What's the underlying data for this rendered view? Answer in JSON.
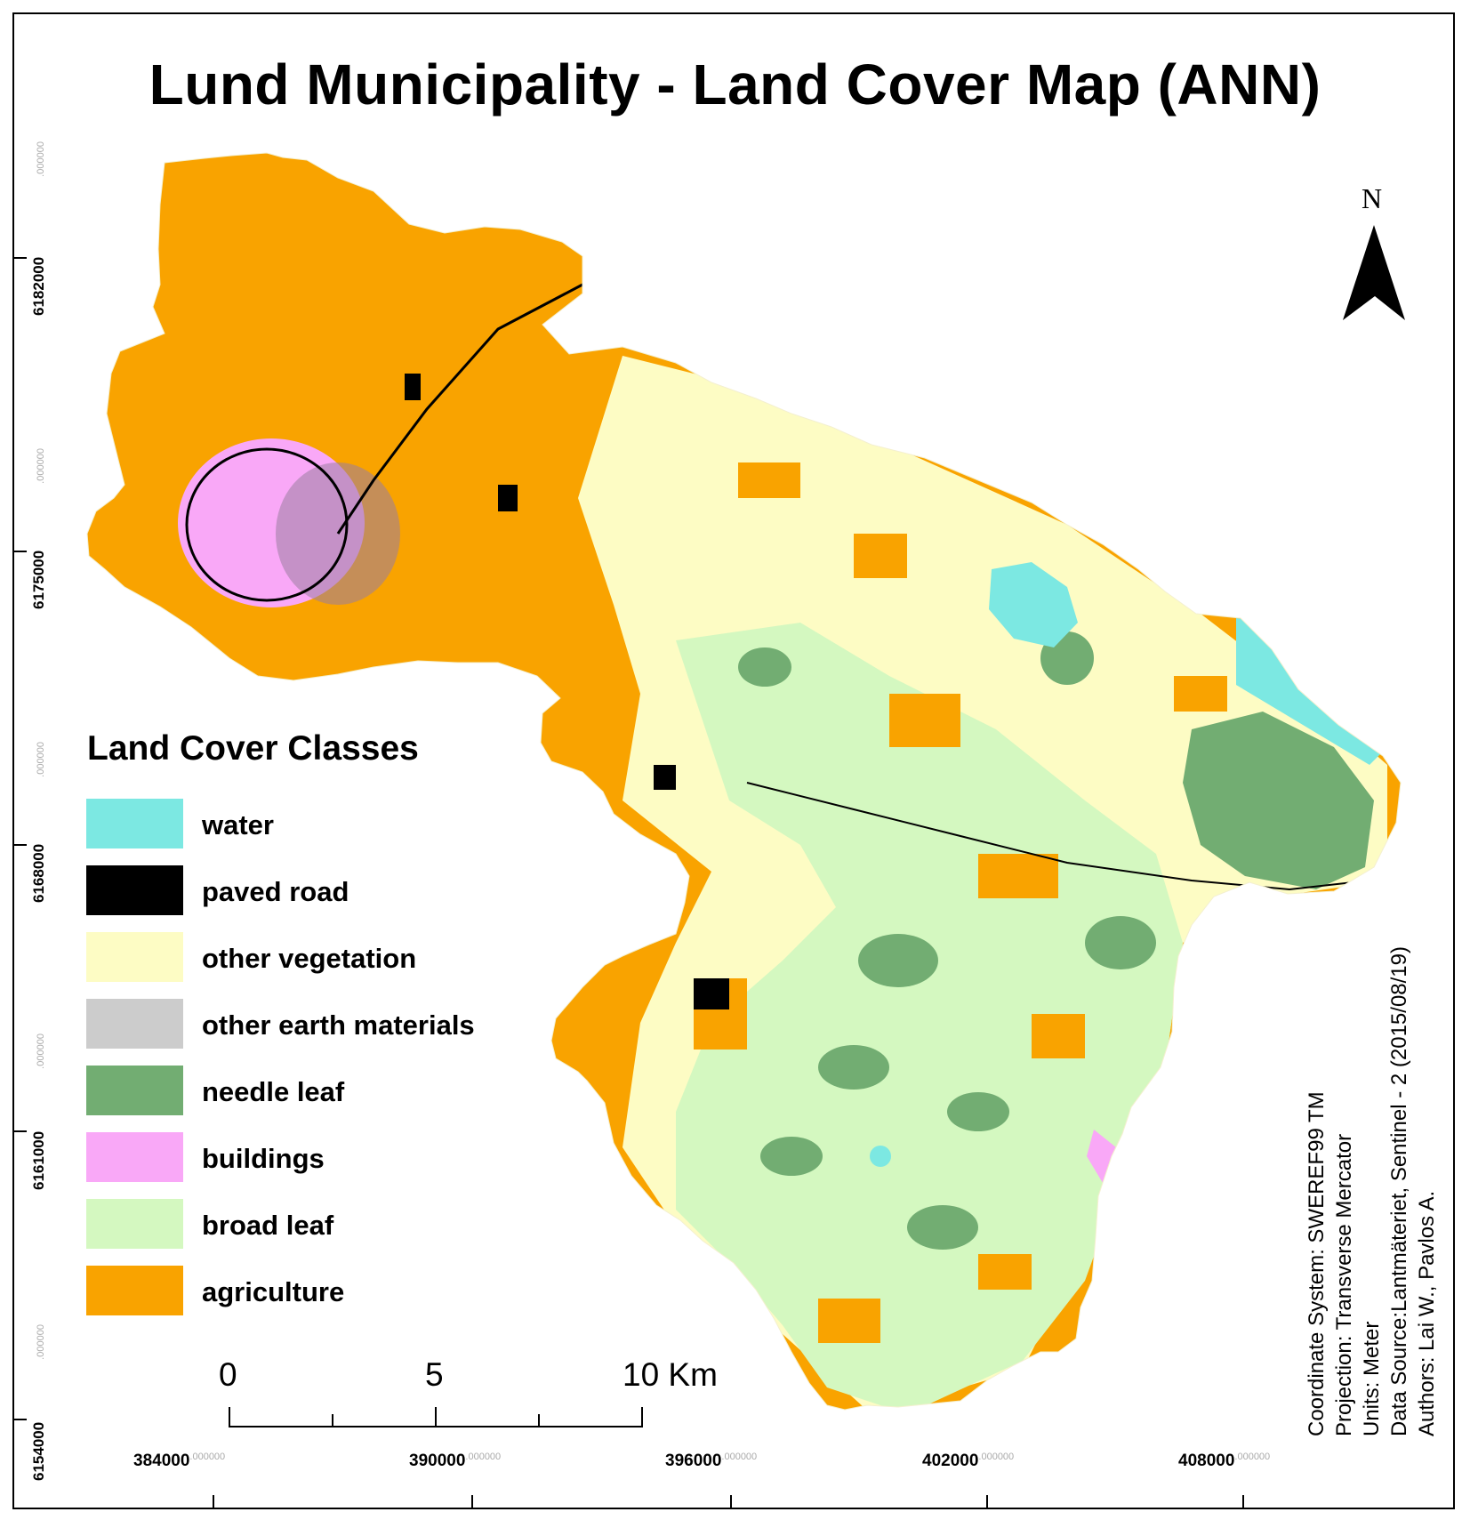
{
  "title": "Lund Municipality - Land Cover Map (ANN)",
  "legend": {
    "title": "Land Cover Classes",
    "items": [
      {
        "label": "water",
        "color": "#7ce8e2"
      },
      {
        "label": "paved road",
        "color": "#000000"
      },
      {
        "label": "other vegetation",
        "color": "#fdfcc4"
      },
      {
        "label": "other earth materials",
        "color": "#cccccc"
      },
      {
        "label": "needle leaf",
        "color": "#72ad72"
      },
      {
        "label": "buildings",
        "color": "#f9a8f7"
      },
      {
        "label": "broad leaf",
        "color": "#d4f8c0"
      },
      {
        "label": "agriculture",
        "color": "#f9a300"
      }
    ]
  },
  "y_axis_labels": [
    {
      "value": "6182000",
      "suffix": ".000000"
    },
    {
      "value": "6175000",
      "suffix": ".000000"
    },
    {
      "value": "6168000",
      "suffix": ".000000"
    },
    {
      "value": "6161000",
      "suffix": ".000000"
    },
    {
      "value": "6154000",
      "suffix": ".000000"
    }
  ],
  "x_axis_labels": [
    {
      "value": "384000",
      "suffix": ".000000"
    },
    {
      "value": "390000",
      "suffix": ".000000"
    },
    {
      "value": "396000",
      "suffix": ".000000"
    },
    {
      "value": "402000",
      "suffix": ".000000"
    },
    {
      "value": "408000",
      "suffix": ".000000"
    }
  ],
  "scale_bar": {
    "labels": [
      "0",
      "5",
      "10 Km"
    ]
  },
  "north_arrow": {
    "label": "N",
    "icon": "north-arrow-icon"
  },
  "metadata": [
    "Coordinate System: SWEREF99 TM",
    "Projection: Transverse Mercator",
    "Units: Meter",
    "Data Source:Lantmäteriet, Sentinel - 2 (2015/08/19)",
    "Authors: Lai W., Pavlos A."
  ]
}
